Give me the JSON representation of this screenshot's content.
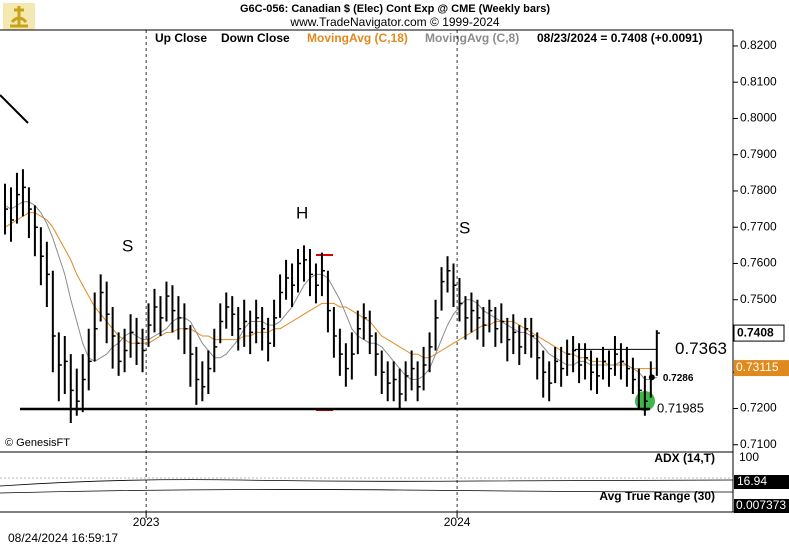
{
  "chart_data": {
    "type": "ohlc",
    "title": "G6C-056:  Canadian $ (Elec) Cont Exp @ CME  (Weekly bars)",
    "subtitle": "www.TradeNavigator.com © 1999-2024",
    "legend": [
      "Up Close",
      "Down Close"
    ],
    "status": "08/23/2024 = 0.7408 (+0.0091)",
    "color": "#000000",
    "high": [
      0.782,
      0.781,
      0.785,
      0.786,
      0.781,
      0.776,
      0.77,
      0.766,
      0.758,
      0.741,
      0.74,
      0.735,
      0.731,
      0.735,
      0.742,
      0.752,
      0.757,
      0.755,
      0.748,
      0.741,
      0.742,
      0.746,
      0.745,
      0.742,
      0.749,
      0.753,
      0.751,
      0.755,
      0.754,
      0.751,
      0.749,
      0.743,
      0.737,
      0.733,
      0.736,
      0.742,
      0.749,
      0.752,
      0.751,
      0.748,
      0.75,
      0.747,
      0.75,
      0.748,
      0.745,
      0.75,
      0.757,
      0.761,
      0.76,
      0.764,
      0.765,
      0.764,
      0.76,
      0.763,
      0.758,
      0.748,
      0.742,
      0.738,
      0.741,
      0.747,
      0.749,
      0.747,
      0.741,
      0.736,
      0.733,
      0.733,
      0.731,
      0.733,
      0.736,
      0.733,
      0.737,
      0.741,
      0.75,
      0.759,
      0.762,
      0.76,
      0.756,
      0.751,
      0.752,
      0.75,
      0.748,
      0.75,
      0.748,
      0.749,
      0.745,
      0.746,
      0.743,
      0.745,
      0.745,
      0.741,
      0.736,
      0.733,
      0.737,
      0.737,
      0.739,
      0.74,
      0.738,
      0.738,
      0.736,
      0.734,
      0.737,
      0.736,
      0.74,
      0.738,
      0.737,
      0.734,
      0.731,
      0.729,
      0.733,
      0.7416
    ],
    "low": [
      0.768,
      0.766,
      0.771,
      0.773,
      0.767,
      0.762,
      0.754,
      0.748,
      0.73,
      0.722,
      0.724,
      0.716,
      0.718,
      0.719,
      0.725,
      0.733,
      0.744,
      0.738,
      0.731,
      0.729,
      0.73,
      0.734,
      0.732,
      0.73,
      0.737,
      0.741,
      0.74,
      0.744,
      0.741,
      0.739,
      0.735,
      0.726,
      0.721,
      0.722,
      0.724,
      0.73,
      0.738,
      0.742,
      0.74,
      0.736,
      0.737,
      0.735,
      0.738,
      0.736,
      0.733,
      0.737,
      0.745,
      0.75,
      0.748,
      0.752,
      0.755,
      0.751,
      0.749,
      0.751,
      0.741,
      0.734,
      0.729,
      0.726,
      0.728,
      0.735,
      0.739,
      0.735,
      0.729,
      0.724,
      0.722,
      0.722,
      0.72,
      0.722,
      0.725,
      0.722,
      0.725,
      0.73,
      0.736,
      0.747,
      0.752,
      0.748,
      0.744,
      0.739,
      0.741,
      0.739,
      0.737,
      0.741,
      0.737,
      0.738,
      0.733,
      0.735,
      0.732,
      0.735,
      0.734,
      0.728,
      0.723,
      0.722,
      0.727,
      0.726,
      0.729,
      0.73,
      0.727,
      0.728,
      0.725,
      0.724,
      0.728,
      0.726,
      0.729,
      0.728,
      0.726,
      0.724,
      0.72,
      0.718,
      0.723,
      0.729
    ],
    "close": [
      0.775,
      0.772,
      0.779,
      0.781,
      0.775,
      0.77,
      0.762,
      0.757,
      0.74,
      0.732,
      0.733,
      0.725,
      0.722,
      0.728,
      0.733,
      0.742,
      0.752,
      0.746,
      0.74,
      0.733,
      0.736,
      0.741,
      0.738,
      0.736,
      0.743,
      0.748,
      0.745,
      0.751,
      0.747,
      0.745,
      0.742,
      0.735,
      0.728,
      0.726,
      0.731,
      0.737,
      0.744,
      0.748,
      0.746,
      0.742,
      0.744,
      0.741,
      0.745,
      0.742,
      0.738,
      0.745,
      0.752,
      0.756,
      0.754,
      0.76,
      0.761,
      0.757,
      0.754,
      0.758,
      0.747,
      0.74,
      0.735,
      0.731,
      0.735,
      0.742,
      0.745,
      0.74,
      0.735,
      0.73,
      0.727,
      0.728,
      0.724,
      0.729,
      0.731,
      0.726,
      0.732,
      0.737,
      0.745,
      0.755,
      0.758,
      0.754,
      0.749,
      0.745,
      0.747,
      0.745,
      0.743,
      0.747,
      0.742,
      0.744,
      0.739,
      0.741,
      0.737,
      0.742,
      0.74,
      0.734,
      0.73,
      0.727,
      0.733,
      0.731,
      0.735,
      0.736,
      0.732,
      0.734,
      0.73,
      0.729,
      0.733,
      0.731,
      0.735,
      0.733,
      0.731,
      0.728,
      0.725,
      0.722,
      0.729,
      0.7408
    ],
    "series": [
      {
        "name": "MovingAvg (C,18)",
        "color": "#e08a1e",
        "values": [
          0.77,
          0.771,
          0.772,
          0.773,
          0.774,
          0.774,
          0.773,
          0.772,
          0.77,
          0.767,
          0.764,
          0.761,
          0.757,
          0.754,
          0.751,
          0.748,
          0.746,
          0.744,
          0.742,
          0.74,
          0.739,
          0.738,
          0.738,
          0.738,
          0.738,
          0.739,
          0.74,
          0.741,
          0.741,
          0.742,
          0.742,
          0.742,
          0.741,
          0.74,
          0.74,
          0.739,
          0.739,
          0.739,
          0.739,
          0.739,
          0.74,
          0.74,
          0.741,
          0.741,
          0.741,
          0.742,
          0.742,
          0.743,
          0.744,
          0.745,
          0.746,
          0.747,
          0.748,
          0.749,
          0.749,
          0.749,
          0.748,
          0.748,
          0.747,
          0.746,
          0.745,
          0.744,
          0.742,
          0.74,
          0.739,
          0.738,
          0.737,
          0.736,
          0.735,
          0.735,
          0.734,
          0.734,
          0.735,
          0.736,
          0.737,
          0.738,
          0.739,
          0.74,
          0.741,
          0.742,
          0.743,
          0.743,
          0.744,
          0.744,
          0.744,
          0.744,
          0.743,
          0.742,
          0.741,
          0.74,
          0.739,
          0.738,
          0.737,
          0.736,
          0.735,
          0.735,
          0.734,
          0.734,
          0.733,
          0.733,
          0.733,
          0.732,
          0.732,
          0.732,
          0.732,
          0.731,
          0.731,
          0.731,
          0.731,
          0.73115
        ]
      },
      {
        "name": "MovingAvg (C,8)",
        "color": "#8c8c8c",
        "values": [
          0.776,
          0.775,
          0.776,
          0.777,
          0.777,
          0.776,
          0.774,
          0.771,
          0.767,
          0.762,
          0.757,
          0.75,
          0.744,
          0.738,
          0.734,
          0.733,
          0.734,
          0.735,
          0.737,
          0.738,
          0.74,
          0.741,
          0.74,
          0.739,
          0.739,
          0.74,
          0.741,
          0.742,
          0.744,
          0.745,
          0.745,
          0.744,
          0.741,
          0.738,
          0.736,
          0.734,
          0.734,
          0.735,
          0.737,
          0.739,
          0.742,
          0.744,
          0.744,
          0.744,
          0.743,
          0.743,
          0.744,
          0.746,
          0.748,
          0.751,
          0.754,
          0.756,
          0.757,
          0.757,
          0.756,
          0.753,
          0.75,
          0.746,
          0.742,
          0.74,
          0.739,
          0.738,
          0.738,
          0.737,
          0.735,
          0.733,
          0.731,
          0.729,
          0.728,
          0.728,
          0.729,
          0.731,
          0.735,
          0.739,
          0.743,
          0.746,
          0.748,
          0.75,
          0.75,
          0.749,
          0.747,
          0.746,
          0.745,
          0.744,
          0.743,
          0.742,
          0.741,
          0.741,
          0.74,
          0.739,
          0.737,
          0.735,
          0.734,
          0.733,
          0.732,
          0.732,
          0.733,
          0.733,
          0.732,
          0.732,
          0.732,
          0.732,
          0.732,
          0.733,
          0.732,
          0.731,
          0.73,
          0.728,
          0.728,
          0.7286
        ]
      }
    ],
    "levels": [
      0.7363,
      0.71985
    ],
    "annotations": [
      "S",
      "H",
      "S"
    ],
    "ylim": [
      0.708,
      0.8244
    ],
    "yticks": [
      {
        "value": 0.71,
        "label": "0.7100"
      },
      {
        "value": 0.72,
        "label": "0.7200"
      },
      {
        "value": 0.73,
        "label": "0.7300"
      },
      {
        "value": 0.74,
        "label": "0.7400"
      },
      {
        "value": 0.75,
        "label": "0.7500"
      },
      {
        "value": 0.76,
        "label": "0.7600"
      },
      {
        "value": 0.77,
        "label": "0.7700"
      },
      {
        "value": 0.78,
        "label": "0.7800"
      },
      {
        "value": 0.79,
        "label": "0.7900"
      },
      {
        "value": 0.8,
        "label": "0.8000"
      },
      {
        "value": 0.81,
        "label": "0.8100"
      },
      {
        "value": 0.82,
        "label": "0.8200"
      }
    ],
    "xticks": [
      {
        "value": 23.6,
        "label": "2023"
      },
      {
        "value": 75.6,
        "label": "2024"
      }
    ],
    "copyright": "© GenesisFT",
    "timestamp": "08/24/2024 16:59:17",
    "adx": {
      "name": "ADX (14,T)",
      "tick": 100,
      "last": 16.94
    },
    "atr": {
      "name": "Avg True Range (30)",
      "last": 0.007373
    }
  }
}
